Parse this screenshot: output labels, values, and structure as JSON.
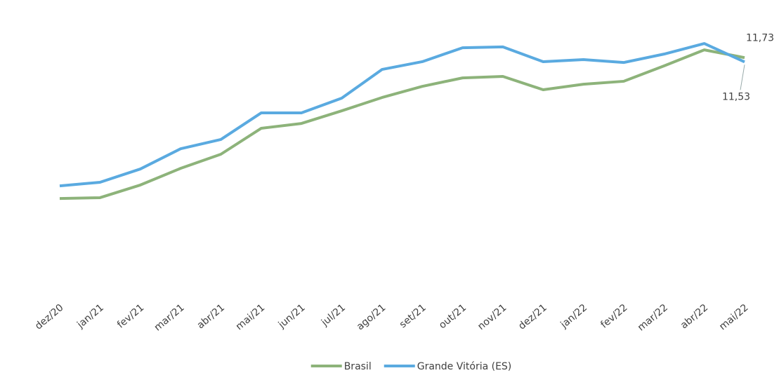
{
  "chart_data": {
    "type": "line",
    "categories": [
      "dez/20",
      "jan/21",
      "fev/21",
      "mar/21",
      "abr/21",
      "mai/21",
      "jun/21",
      "jul/21",
      "ago/21",
      "set/21",
      "out/21",
      "nov/21",
      "dez/21",
      "jan/22",
      "fev/22",
      "mar/22",
      "abr/22",
      "mai/22"
    ],
    "series": [
      {
        "name": "Brasil",
        "color": "#8db37a",
        "values": [
          5.05,
          5.09,
          5.69,
          6.48,
          7.15,
          8.38,
          8.61,
          9.21,
          9.84,
          10.37,
          10.77,
          10.84,
          10.21,
          10.47,
          10.61,
          11.34,
          12.1,
          11.73
        ],
        "value_labels": [
          null,
          null,
          null,
          null,
          null,
          null,
          null,
          null,
          null,
          null,
          null,
          null,
          null,
          null,
          null,
          null,
          null,
          "11,73"
        ]
      },
      {
        "name": "Grande Vitória (ES)",
        "color": "#5aaae0",
        "values": [
          5.65,
          5.82,
          6.45,
          7.41,
          7.85,
          9.11,
          9.11,
          9.81,
          11.17,
          11.54,
          12.2,
          12.24,
          11.54,
          11.64,
          11.5,
          11.9,
          12.4,
          11.53
        ],
        "value_labels": [
          null,
          null,
          null,
          null,
          null,
          null,
          null,
          null,
          null,
          null,
          null,
          null,
          null,
          null,
          null,
          null,
          null,
          "11,53"
        ]
      }
    ],
    "ylim": [
      0.5,
      13.8
    ],
    "legend": "bottom"
  }
}
